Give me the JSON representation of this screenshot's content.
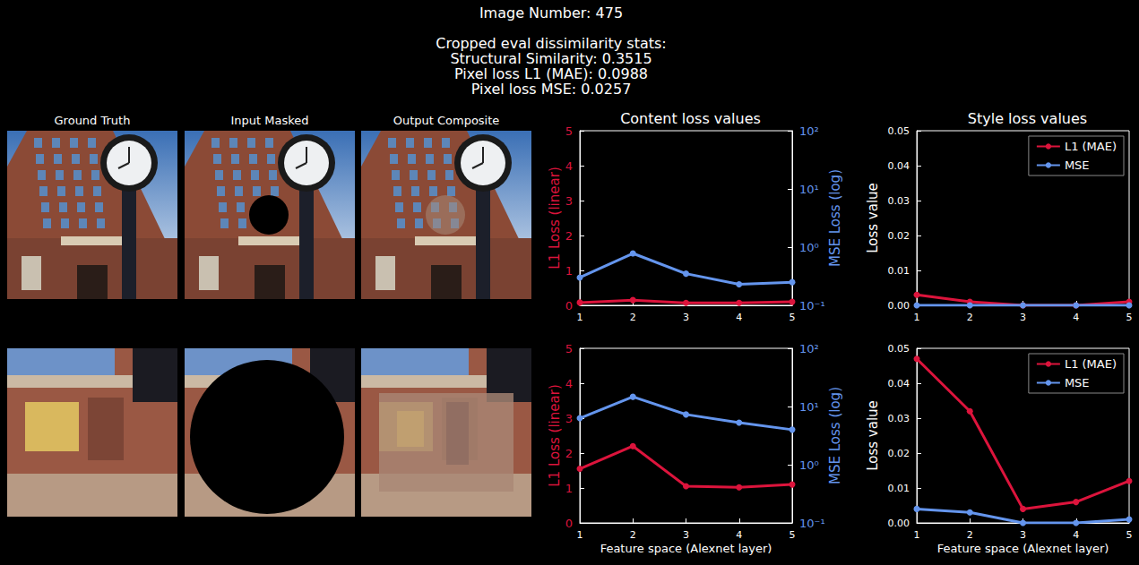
{
  "header": {
    "image_number": "Image Number: 475",
    "stats_title": "Cropped eval dissimilarity stats:",
    "stats": [
      "Structural Similarity: 0.3515",
      "Pixel loss L1 (MAE): 0.0988",
      "Pixel loss MSE: 0.0257"
    ]
  },
  "image_panels": {
    "titles": [
      "Ground Truth",
      "Input Masked",
      "Output Composite"
    ]
  },
  "chart_data": [
    {
      "type": "line",
      "title": "Content loss values",
      "x": [
        1,
        2,
        3,
        4,
        5
      ],
      "xlim": [
        1,
        5
      ],
      "xticks": [
        1,
        2,
        3,
        4,
        5
      ],
      "y_label": "L1 Loss (linear)",
      "ylim": [
        0,
        5
      ],
      "yticks": [
        0,
        1,
        2,
        3,
        4,
        5
      ],
      "y2_label": "MSE Loss (log)",
      "y2lim": [
        0.1,
        100
      ],
      "y2ticks": [
        {
          "value": 0.1,
          "label": "10⁻¹"
        },
        {
          "value": 1,
          "label": "10⁰"
        },
        {
          "value": 10,
          "label": "10¹"
        },
        {
          "value": 100,
          "label": "10²"
        }
      ],
      "log": "y2",
      "series": [
        {
          "color": "#dc143c",
          "marker": "circle",
          "values": [
            0.08,
            0.15,
            0.07,
            0.07,
            0.1
          ]
        },
        {
          "color": "#6495ed",
          "marker": "circle",
          "axis": "y2",
          "values": [
            0.3,
            0.78,
            0.35,
            0.23,
            0.25
          ]
        }
      ]
    },
    {
      "type": "line",
      "title": "Style loss values",
      "x": [
        1,
        2,
        3,
        4,
        5
      ],
      "xlim": [
        1,
        5
      ],
      "xticks": [
        1,
        2,
        3,
        4,
        5
      ],
      "y_label": "Loss value",
      "ylim": [
        0,
        0.05
      ],
      "yticks": [
        {
          "value": 0,
          "label": "0.00"
        },
        {
          "value": 0.01,
          "label": "0.01"
        },
        {
          "value": 0.02,
          "label": "0.02"
        },
        {
          "value": 0.03,
          "label": "0.03"
        },
        {
          "value": 0.04,
          "label": "0.04"
        },
        {
          "value": 0.05,
          "label": "0.05"
        }
      ],
      "legend": "upper right",
      "series": [
        {
          "name": "L1 (MAE)",
          "color": "#dc143c",
          "marker": "circle",
          "values": [
            0.003,
            0.001,
            0.0,
            0.0,
            0.001
          ]
        },
        {
          "name": "MSE",
          "color": "#6495ed",
          "marker": "circle",
          "values": [
            0.0,
            0.0,
            0.0,
            0.0,
            0.0
          ]
        }
      ]
    },
    {
      "type": "line",
      "x": [
        1,
        2,
        3,
        4,
        5
      ],
      "xlim": [
        1,
        5
      ],
      "xticks": [
        1,
        2,
        3,
        4,
        5
      ],
      "x_label": "Feature space (Alexnet layer)",
      "y_label": "L1 Loss (linear)",
      "ylim": [
        0,
        5
      ],
      "yticks": [
        0,
        1,
        2,
        3,
        4,
        5
      ],
      "y2_label": "MSE Loss (log)",
      "y2lim": [
        0.1,
        100
      ],
      "y2ticks": [
        {
          "value": 0.1,
          "label": "10⁻¹"
        },
        {
          "value": 1,
          "label": "10⁰"
        },
        {
          "value": 10,
          "label": "10¹"
        },
        {
          "value": 100,
          "label": "10²"
        }
      ],
      "log": "y2",
      "series": [
        {
          "color": "#dc143c",
          "marker": "circle",
          "values": [
            1.55,
            2.2,
            1.05,
            1.02,
            1.1
          ]
        },
        {
          "color": "#6495ed",
          "marker": "circle",
          "axis": "y2",
          "values": [
            6.3,
            14.7,
            7.3,
            5.3,
            4.0
          ]
        }
      ]
    },
    {
      "type": "line",
      "x": [
        1,
        2,
        3,
        4,
        5
      ],
      "xlim": [
        1,
        5
      ],
      "xticks": [
        1,
        2,
        3,
        4,
        5
      ],
      "x_label": "Feature space (Alexnet layer)",
      "y_label": "Loss value",
      "ylim": [
        0,
        0.05
      ],
      "yticks": [
        {
          "value": 0,
          "label": "0.00"
        },
        {
          "value": 0.01,
          "label": "0.01"
        },
        {
          "value": 0.02,
          "label": "0.02"
        },
        {
          "value": 0.03,
          "label": "0.03"
        },
        {
          "value": 0.04,
          "label": "0.04"
        },
        {
          "value": 0.05,
          "label": "0.05"
        }
      ],
      "legend": "upper right",
      "series": [
        {
          "name": "L1 (MAE)",
          "color": "#dc143c",
          "marker": "circle",
          "values": [
            0.047,
            0.032,
            0.004,
            0.006,
            0.012
          ]
        },
        {
          "name": "MSE",
          "color": "#6495ed",
          "marker": "circle",
          "values": [
            0.004,
            0.003,
            0.0,
            0.0,
            0.001
          ]
        }
      ]
    }
  ]
}
